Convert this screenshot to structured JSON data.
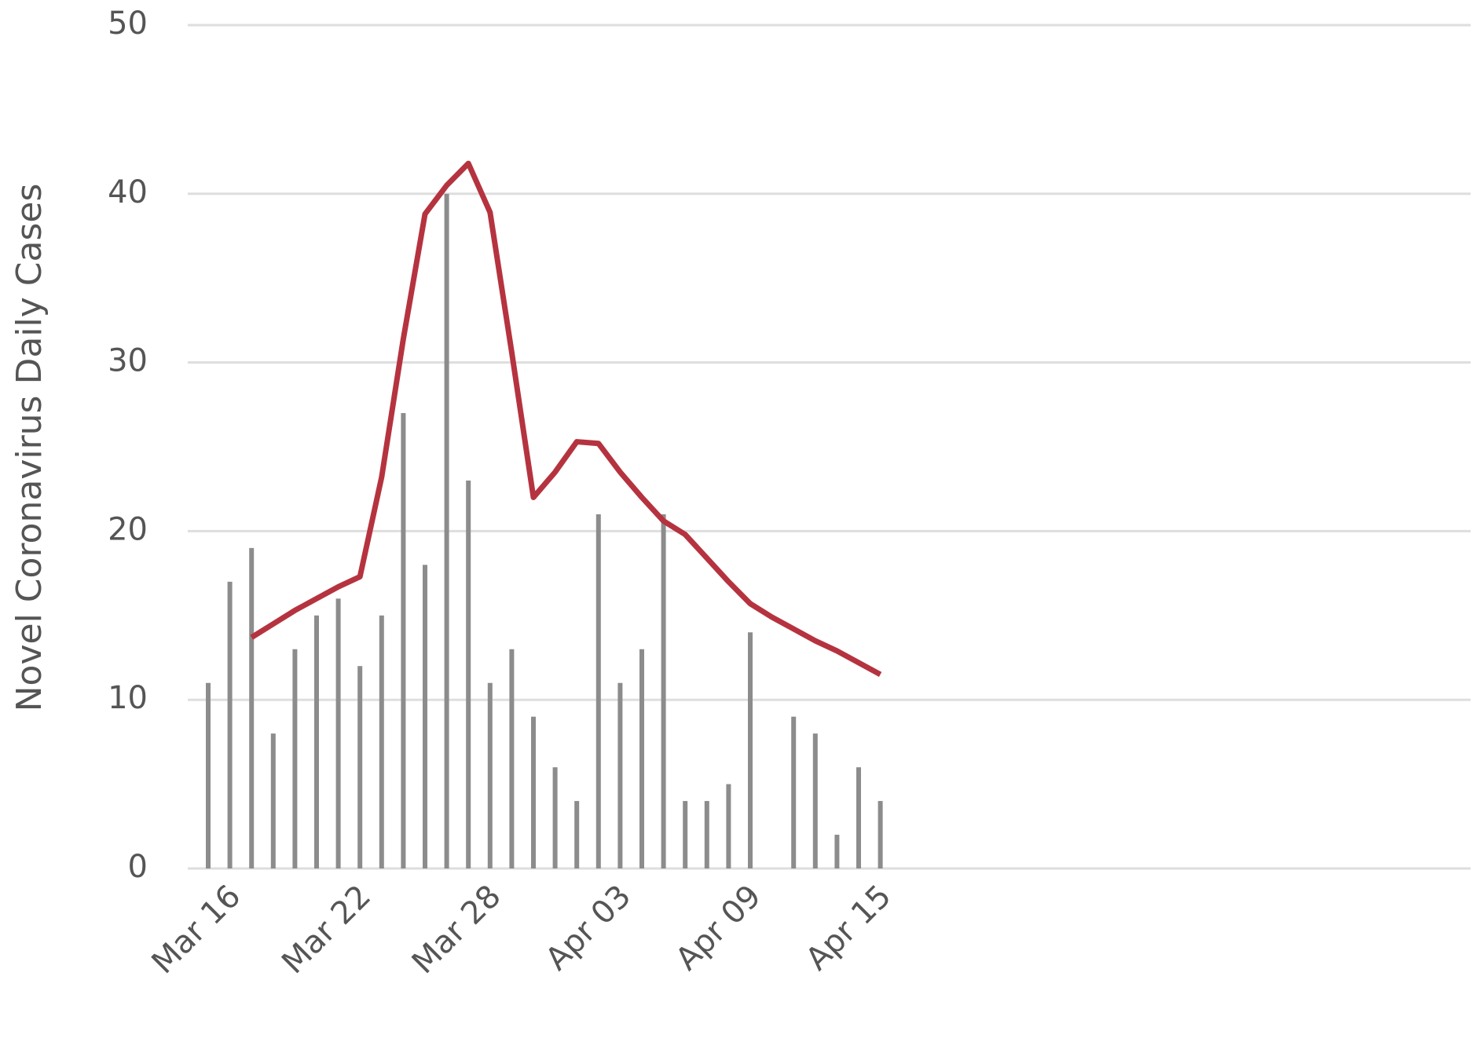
{
  "chart_data": {
    "type": "bar-line",
    "y_axis_label": "Novel Coronavirus Daily Cases",
    "categories": [
      null,
      "Mar 16",
      null,
      null,
      null,
      null,
      null,
      "Mar 22",
      null,
      null,
      null,
      null,
      null,
      "Mar 28",
      null,
      null,
      null,
      null,
      null,
      "Apr 03",
      null,
      null,
      null,
      null,
      null,
      "Apr 09",
      null,
      null,
      null,
      null,
      null,
      "Apr 15"
    ],
    "series": [
      {
        "type": "bar",
        "color": "#8c8c8c",
        "values": [
          11,
          17,
          19,
          8,
          13,
          15,
          16,
          12,
          15,
          27,
          18,
          40,
          23,
          11,
          13,
          9,
          6,
          4,
          21,
          11,
          13,
          21,
          4,
          4,
          5,
          14,
          0,
          9,
          8,
          2,
          6,
          4
        ]
      },
      {
        "type": "line",
        "color": "#b5333f",
        "values": [
          null,
          null,
          13.7,
          14.5,
          15.3,
          16,
          16.7,
          17.3,
          23.2,
          31.4,
          38.8,
          40.5,
          41.8,
          38.9,
          30.6,
          22,
          23.5,
          25.3,
          25.2,
          23.5,
          22,
          20.6,
          19.8,
          18.4,
          17,
          15.7,
          14.9,
          14.2,
          13.5,
          12.9,
          12.2,
          11.5
        ]
      }
    ],
    "ylim": [
      0,
      50
    ],
    "yticks": [
      0,
      10,
      20,
      30,
      40,
      50
    ],
    "grid": true
  }
}
